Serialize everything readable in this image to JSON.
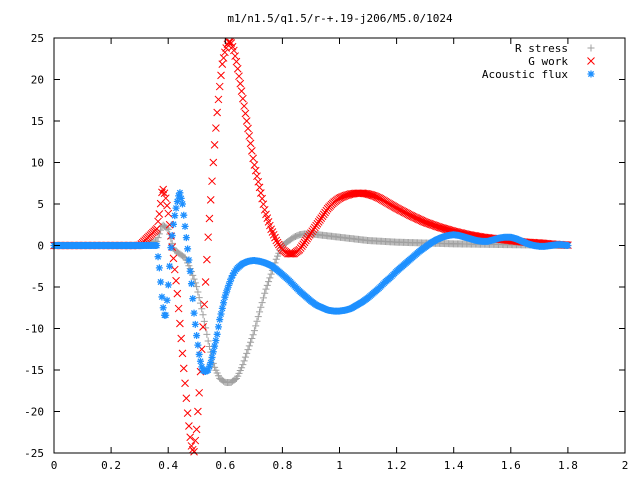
{
  "chart_data": {
    "type": "scatter",
    "title": "m1/n1.5/q1.5/r-+.19-j206/M5.0/1024",
    "xlabel": "",
    "ylabel": "",
    "xlim": [
      0,
      2
    ],
    "ylim": [
      -25,
      25
    ],
    "xticks": [
      "0",
      "0.2",
      "0.4",
      "0.6",
      "0.8",
      "1",
      "1.2",
      "1.4",
      "1.6",
      "1.8",
      "2"
    ],
    "yticks": [
      "25",
      "20",
      "15",
      "10",
      "5",
      "0",
      "-5",
      "-10",
      "-15",
      "-20",
      "-25"
    ],
    "grid": false,
    "legend_position": "top-right",
    "series": [
      {
        "name": "R stress",
        "marker": "plus",
        "color": "#a0a0a0",
        "x": [
          0.0,
          0.1,
          0.2,
          0.3,
          0.36,
          0.38,
          0.4,
          0.42,
          0.44,
          0.46,
          0.48,
          0.5,
          0.52,
          0.54,
          0.56,
          0.58,
          0.6,
          0.62,
          0.64,
          0.66,
          0.68,
          0.7,
          0.72,
          0.74,
          0.76,
          0.78,
          0.8,
          0.82,
          0.84,
          0.86,
          0.88,
          0.9,
          0.95,
          1.0,
          1.05,
          1.1,
          1.2,
          1.3,
          1.4,
          1.5,
          1.6,
          1.7,
          1.8
        ],
        "y": [
          0,
          0,
          0,
          0,
          0.5,
          2.5,
          2.0,
          -0.5,
          -1.0,
          -1.5,
          -3.0,
          -5.0,
          -8.0,
          -11.5,
          -14.5,
          -16.0,
          -16.5,
          -16.5,
          -16.0,
          -14.5,
          -12.5,
          -10.5,
          -8.0,
          -5.5,
          -3.5,
          -1.5,
          0.0,
          0.5,
          1.0,
          1.3,
          1.4,
          1.4,
          1.2,
          1.0,
          0.8,
          0.6,
          0.4,
          0.3,
          0.2,
          0.15,
          0.1,
          0.05,
          0.0
        ]
      },
      {
        "name": "G work",
        "marker": "x",
        "color": "#ff0000",
        "x": [
          0.0,
          0.1,
          0.2,
          0.3,
          0.36,
          0.37,
          0.38,
          0.39,
          0.4,
          0.41,
          0.42,
          0.43,
          0.44,
          0.45,
          0.46,
          0.47,
          0.48,
          0.49,
          0.5,
          0.51,
          0.52,
          0.53,
          0.54,
          0.55,
          0.56,
          0.57,
          0.58,
          0.59,
          0.6,
          0.61,
          0.62,
          0.63,
          0.64,
          0.65,
          0.66,
          0.67,
          0.68,
          0.69,
          0.7,
          0.72,
          0.74,
          0.76,
          0.78,
          0.8,
          0.82,
          0.84,
          0.86,
          0.88,
          0.9,
          0.92,
          0.94,
          0.96,
          0.98,
          1.0,
          1.02,
          1.04,
          1.06,
          1.08,
          1.1,
          1.12,
          1.14,
          1.16,
          1.18,
          1.2,
          1.25,
          1.3,
          1.35,
          1.4,
          1.45,
          1.5,
          1.55,
          1.6,
          1.65,
          1.7,
          1.75,
          1.8
        ],
        "y": [
          0,
          0,
          0,
          0,
          2,
          4,
          7,
          6,
          4,
          1,
          -2,
          -5,
          -9,
          -13,
          -17,
          -21,
          -24,
          -25,
          -22,
          -17,
          -11,
          -5,
          1,
          6,
          11,
          15.5,
          19,
          22,
          23.5,
          24.5,
          24.5,
          23.5,
          22,
          20,
          18,
          16,
          14,
          12,
          10,
          7,
          4,
          2,
          0.5,
          -0.5,
          -1,
          -1,
          -0.5,
          0.5,
          1.5,
          2.5,
          3.5,
          4.5,
          5.2,
          5.7,
          6,
          6.2,
          6.3,
          6.3,
          6.2,
          6,
          5.7,
          5.3,
          4.9,
          4.5,
          3.6,
          2.8,
          2.2,
          1.7,
          1.3,
          1.0,
          0.8,
          0.6,
          0.4,
          0.3,
          0.15,
          0.05
        ]
      },
      {
        "name": "Acoustic flux",
        "marker": "star",
        "color": "#1e90ff",
        "x": [
          0.0,
          0.1,
          0.2,
          0.3,
          0.36,
          0.37,
          0.38,
          0.39,
          0.4,
          0.41,
          0.42,
          0.43,
          0.44,
          0.45,
          0.46,
          0.47,
          0.48,
          0.49,
          0.5,
          0.51,
          0.52,
          0.53,
          0.54,
          0.55,
          0.56,
          0.57,
          0.58,
          0.59,
          0.6,
          0.61,
          0.62,
          0.63,
          0.64,
          0.66,
          0.68,
          0.7,
          0.72,
          0.74,
          0.76,
          0.78,
          0.8,
          0.82,
          0.84,
          0.86,
          0.88,
          0.9,
          0.92,
          0.94,
          0.96,
          0.98,
          1.0,
          1.02,
          1.04,
          1.06,
          1.08,
          1.1,
          1.12,
          1.14,
          1.16,
          1.18,
          1.2,
          1.22,
          1.24,
          1.26,
          1.28,
          1.3,
          1.32,
          1.34,
          1.36,
          1.38,
          1.4,
          1.42,
          1.44,
          1.46,
          1.48,
          1.5,
          1.52,
          1.54,
          1.56,
          1.58,
          1.6,
          1.62,
          1.64,
          1.66,
          1.68,
          1.7,
          1.72,
          1.74,
          1.76,
          1.78,
          1.8
        ],
        "y": [
          0,
          0,
          0,
          0,
          0,
          -3,
          -7,
          -9,
          -5,
          0,
          3,
          5,
          6.5,
          5,
          2,
          -1,
          -4,
          -8,
          -11,
          -13.5,
          -15,
          -15.2,
          -15,
          -14,
          -12.5,
          -11,
          -9,
          -7.5,
          -6,
          -5,
          -4,
          -3.3,
          -2.8,
          -2.2,
          -1.9,
          -1.8,
          -1.9,
          -2.1,
          -2.4,
          -2.9,
          -3.5,
          -4.1,
          -4.8,
          -5.5,
          -6.1,
          -6.7,
          -7.2,
          -7.5,
          -7.8,
          -7.9,
          -7.9,
          -7.8,
          -7.6,
          -7.2,
          -6.8,
          -6.3,
          -5.7,
          -5.1,
          -4.4,
          -3.8,
          -3.1,
          -2.5,
          -1.9,
          -1.3,
          -0.7,
          -0.2,
          0.3,
          0.7,
          1.0,
          1.2,
          1.3,
          1.2,
          1.0,
          0.8,
          0.6,
          0.5,
          0.5,
          0.7,
          0.9,
          1.0,
          1.0,
          0.8,
          0.5,
          0.2,
          0.0,
          -0.1,
          -0.1,
          0.0,
          0.1,
          0.1,
          0.0
        ]
      }
    ]
  }
}
